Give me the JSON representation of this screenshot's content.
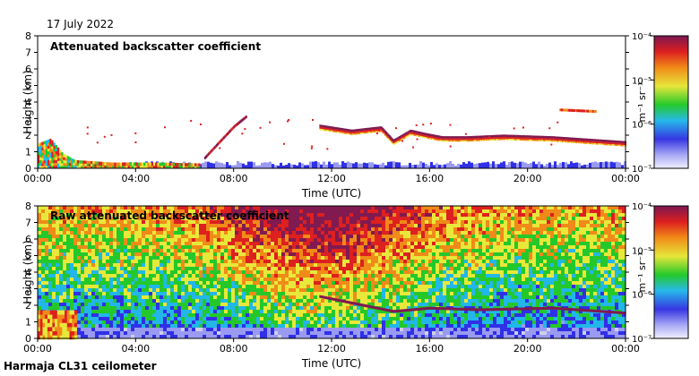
{
  "date": "17 July 2022",
  "instrument": "Harmaja CL31 ceilometer",
  "colors": {
    "palette": [
      "#cfcfe8",
      "#9a9af2",
      "#3030e6",
      "#22b7e8",
      "#24c82a",
      "#e8e83a",
      "#f08a18",
      "#dd2020",
      "#801a50"
    ]
  },
  "chart_data": [
    {
      "type": "heatmap",
      "title": "Attenuated backscatter coefficient",
      "xlabel": "Time (UTC)",
      "ylabel": "Height (km)",
      "xlim": [
        0,
        24
      ],
      "ylim": [
        0,
        8
      ],
      "x_ticks": [
        "00:00",
        "04:00",
        "08:00",
        "12:00",
        "16:00",
        "20:00",
        "00:00"
      ],
      "y_ticks": [
        "0",
        "1",
        "2",
        "3",
        "4",
        "5",
        "6",
        "7",
        "8"
      ],
      "colorbar": {
        "label": "m⁻¹ sr⁻¹",
        "scale": "log",
        "ticks": [
          "10⁻⁷",
          "10⁻⁶",
          "10⁻⁵",
          "10⁻⁴"
        ],
        "range": [
          1e-07,
          0.0001
        ]
      },
      "features": {
        "boundary_layer_km": [
          [
            0,
            1.5
          ],
          [
            0.5,
            1.8
          ],
          [
            1,
            0.9
          ],
          [
            1.5,
            0.5
          ],
          [
            3,
            0.35
          ],
          [
            5,
            0.35
          ],
          [
            6.5,
            0.3
          ]
        ],
        "rising_layer": [
          [
            6.8,
            0.6
          ],
          [
            7.3,
            1.4
          ],
          [
            8.0,
            2.5
          ],
          [
            8.5,
            3.1
          ]
        ],
        "cloud_base_km": [
          [
            11.5,
            2.5
          ],
          [
            12.8,
            2.2
          ],
          [
            14.0,
            2.4
          ],
          [
            14.5,
            1.6
          ],
          [
            15.2,
            2.2
          ],
          [
            15.8,
            2.0
          ],
          [
            16.5,
            1.8
          ],
          [
            17.5,
            1.8
          ],
          [
            19.0,
            1.9
          ],
          [
            21.0,
            1.8
          ],
          [
            23.0,
            1.6
          ],
          [
            24.0,
            1.5
          ]
        ],
        "upper_layer_km": [
          [
            21.3,
            3.5
          ],
          [
            22.8,
            3.4
          ]
        ],
        "low_band_km": 0.2
      }
    },
    {
      "type": "heatmap",
      "title": "Raw attenuated backscatter coefficient",
      "xlabel": "Time (UTC)",
      "ylabel": "Height (km)",
      "xlim": [
        0,
        24
      ],
      "ylim": [
        0,
        8
      ],
      "x_ticks": [
        "00:00",
        "04:00",
        "08:00",
        "12:00",
        "16:00",
        "20:00",
        "00:00"
      ],
      "y_ticks": [
        "0",
        "1",
        "2",
        "3",
        "4",
        "5",
        "6",
        "7",
        "8"
      ],
      "colorbar": {
        "label": "m⁻¹ sr⁻¹",
        "scale": "log",
        "ticks": [
          "10⁻⁷",
          "10⁻⁶",
          "10⁻⁵",
          "10⁻⁴"
        ],
        "range": [
          1e-07,
          0.0001
        ]
      },
      "features": {
        "noise_increases_with_height": true,
        "peak_noise_time_h": [
          9,
          14
        ],
        "cloud_base_km": [
          [
            11.5,
            2.5
          ],
          [
            14.5,
            1.6
          ],
          [
            16.0,
            1.8
          ],
          [
            18.0,
            1.7
          ],
          [
            21.0,
            1.8
          ],
          [
            24.0,
            1.5
          ]
        ]
      }
    }
  ]
}
